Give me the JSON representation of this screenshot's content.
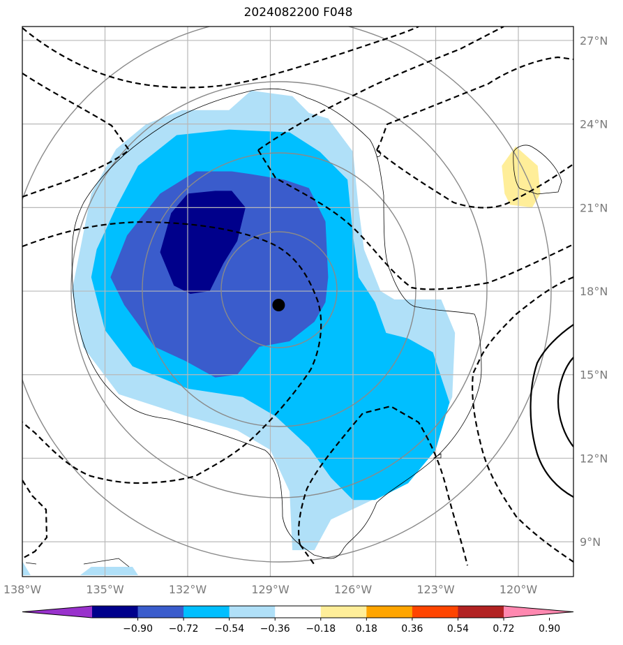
{
  "title": "2024082200 F048",
  "chart_data": {
    "type": "heatmap",
    "title": "2024082200 F048",
    "x_ticks": [
      "138°W",
      "135°W",
      "132°W",
      "129°W",
      "126°W",
      "123°W",
      "120°W"
    ],
    "y_ticks": [
      "9°N",
      "12°N",
      "15°N",
      "18°N",
      "21°N",
      "24°N",
      "27°N"
    ],
    "x_range": [
      -138,
      -118
    ],
    "y_range": [
      7.75,
      27.5
    ],
    "grid": true,
    "center_marker": {
      "lon": -128.7,
      "lat": 17.5
    },
    "colorbar": {
      "location": "bottom",
      "extend": "both",
      "boundaries": [
        -1.08,
        -0.9,
        -0.72,
        -0.54,
        -0.36,
        -0.18,
        0.18,
        0.36,
        0.54,
        0.72,
        0.9,
        1.08
      ],
      "tick_labels": [
        "−0.90",
        "−0.72",
        "−0.54",
        "−0.36",
        "−0.18",
        "0.18",
        "0.36",
        "0.54",
        "0.72",
        "0.90"
      ],
      "colors": [
        "#9932cc",
        "#00008b",
        "#3a5ccc",
        "#00bfff",
        "#b0e0f8",
        "#ffffff",
        "#ffee99",
        "#ffa500",
        "#ff4500",
        "#b22222",
        "#ff88b0"
      ]
    },
    "filled_regions": [
      {
        "level": -0.18,
        "color": "#b0e0f8",
        "points": [
          [
            -135.8,
            20
          ],
          [
            -135.5,
            21.5
          ],
          [
            -134.6,
            23.1
          ],
          [
            -133.5,
            24
          ],
          [
            -132.2,
            24.5
          ],
          [
            -130.5,
            24.5
          ],
          [
            -129.7,
            25.2
          ],
          [
            -128.2,
            25
          ],
          [
            -127.6,
            24.4
          ],
          [
            -126.9,
            24.2
          ],
          [
            -126,
            23
          ],
          [
            -125.8,
            21
          ],
          [
            -125.6,
            19.5
          ],
          [
            -125,
            18
          ],
          [
            -124.5,
            17.7
          ],
          [
            -122.8,
            17.7
          ],
          [
            -122.3,
            16.5
          ],
          [
            -122.4,
            14.2
          ],
          [
            -123,
            12.8
          ],
          [
            -124.1,
            11.5
          ],
          [
            -125.3,
            10.5
          ],
          [
            -126.8,
            9.8
          ],
          [
            -127.4,
            8.7
          ],
          [
            -128.2,
            8.7
          ],
          [
            -128.3,
            10.8
          ],
          [
            -129,
            12.3
          ],
          [
            -130.2,
            13
          ],
          [
            -132,
            13.5
          ],
          [
            -134.5,
            14.3
          ],
          [
            -135.8,
            16
          ],
          [
            -136.2,
            18
          ]
        ]
      },
      {
        "level": -0.36,
        "color": "#00bfff",
        "points": [
          [
            -135.3,
            19.5
          ],
          [
            -134.6,
            21
          ],
          [
            -133.8,
            22.5
          ],
          [
            -132.4,
            23.6
          ],
          [
            -130.5,
            23.8
          ],
          [
            -128.3,
            23.7
          ],
          [
            -127.2,
            23
          ],
          [
            -126.2,
            22
          ],
          [
            -126,
            20
          ],
          [
            -125.8,
            18.5
          ],
          [
            -125.2,
            17.6
          ],
          [
            -124.8,
            16.5
          ],
          [
            -124,
            16.3
          ],
          [
            -123.1,
            15.8
          ],
          [
            -122.5,
            14
          ],
          [
            -123,
            12.3
          ],
          [
            -124,
            11.1
          ],
          [
            -125.2,
            10.5
          ],
          [
            -126,
            10.5
          ],
          [
            -126.8,
            11.3
          ],
          [
            -127.6,
            12.4
          ],
          [
            -128.8,
            13.5
          ],
          [
            -130,
            14.2
          ],
          [
            -132,
            14.5
          ],
          [
            -134,
            15.3
          ],
          [
            -135,
            16.6
          ],
          [
            -135.5,
            18.5
          ]
        ]
      },
      {
        "level": -0.54,
        "color": "#3a5ccc",
        "points": [
          [
            -134.8,
            18.5
          ],
          [
            -134.2,
            20
          ],
          [
            -133,
            21.5
          ],
          [
            -131.7,
            22.3
          ],
          [
            -130.4,
            22.3
          ],
          [
            -129.7,
            22.2
          ],
          [
            -128.5,
            22
          ],
          [
            -127.6,
            21.7
          ],
          [
            -127,
            20.5
          ],
          [
            -126.9,
            18.5
          ],
          [
            -127,
            17.6
          ],
          [
            -127.4,
            16.9
          ],
          [
            -128.3,
            16.2
          ],
          [
            -129.4,
            16
          ],
          [
            -130.2,
            15
          ],
          [
            -131,
            14.9
          ],
          [
            -132.1,
            15.5
          ],
          [
            -133.2,
            16
          ],
          [
            -134.3,
            17.5
          ]
        ]
      },
      {
        "level": -0.72,
        "color": "#00008b",
        "points": [
          [
            -133,
            19.4
          ],
          [
            -132.6,
            20.8
          ],
          [
            -132,
            21.5
          ],
          [
            -131,
            21.6
          ],
          [
            -130.4,
            21.6
          ],
          [
            -129.9,
            21
          ],
          [
            -130.2,
            19.8
          ],
          [
            -130.7,
            19
          ],
          [
            -131.2,
            18
          ],
          [
            -131.9,
            17.9
          ],
          [
            -132.5,
            18.2
          ]
        ]
      },
      {
        "level": 0.18,
        "color": "#ffee99",
        "points": [
          [
            -120.6,
            22.5
          ],
          [
            -120.1,
            23.2
          ],
          [
            -119.3,
            22.5
          ],
          [
            -119.2,
            21.5
          ],
          [
            -119.5,
            21
          ],
          [
            -120.3,
            21.1
          ],
          [
            -120.5,
            21.5
          ]
        ]
      },
      {
        "level": -0.18,
        "color": "#b0e0f8",
        "points": [
          [
            -135.9,
            7.8
          ],
          [
            -135.5,
            8.1
          ],
          [
            -134,
            8.1
          ],
          [
            -133.8,
            7.8
          ]
        ]
      },
      {
        "level": -0.18,
        "color": "#b0e0f8",
        "points": [
          [
            -138,
            8.3
          ],
          [
            -137.7,
            7.8
          ],
          [
            -138,
            7.8
          ]
        ]
      }
    ]
  }
}
